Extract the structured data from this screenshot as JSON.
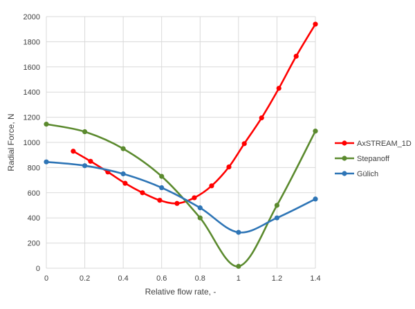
{
  "chart_data": {
    "type": "line",
    "title": "",
    "xlabel": "Relative flow rate, -",
    "ylabel": "Radial Force, N",
    "xlim": [
      0,
      1.4
    ],
    "ylim": [
      0,
      2000
    ],
    "x_ticks": [
      "0",
      "0.2",
      "0.4",
      "0.6",
      "0.8",
      "1",
      "1.2",
      "1.4"
    ],
    "y_ticks": [
      "0",
      "200",
      "400",
      "600",
      "800",
      "1000",
      "1200",
      "1400",
      "1600",
      "1800",
      "2000"
    ],
    "grid": true,
    "legend": "right",
    "series": [
      {
        "name": "AxSTREAM_1D",
        "color": "#ff0000",
        "points": [
          [
            0.14,
            930
          ],
          [
            0.23,
            850
          ],
          [
            0.32,
            765
          ],
          [
            0.41,
            675
          ],
          [
            0.5,
            600
          ],
          [
            0.59,
            540
          ],
          [
            0.68,
            515
          ],
          [
            0.77,
            560
          ],
          [
            0.86,
            655
          ],
          [
            0.95,
            805
          ],
          [
            1.03,
            990
          ],
          [
            1.12,
            1195
          ],
          [
            1.21,
            1430
          ],
          [
            1.3,
            1685
          ],
          [
            1.4,
            1940
          ]
        ]
      },
      {
        "name": "Stepanoff",
        "color": "#5b8a2e",
        "points": [
          [
            0,
            1145
          ],
          [
            0.2,
            1085
          ],
          [
            0.4,
            950
          ],
          [
            0.6,
            730
          ],
          [
            0.8,
            400
          ],
          [
            1.0,
            15
          ],
          [
            1.2,
            500
          ],
          [
            1.4,
            1090
          ]
        ]
      },
      {
        "name": "Gülich",
        "color": "#2e75b6",
        "points": [
          [
            0,
            845
          ],
          [
            0.2,
            815
          ],
          [
            0.4,
            750
          ],
          [
            0.6,
            640
          ],
          [
            0.8,
            480
          ],
          [
            1.0,
            285
          ],
          [
            1.2,
            400
          ],
          [
            1.4,
            550
          ]
        ]
      }
    ]
  }
}
